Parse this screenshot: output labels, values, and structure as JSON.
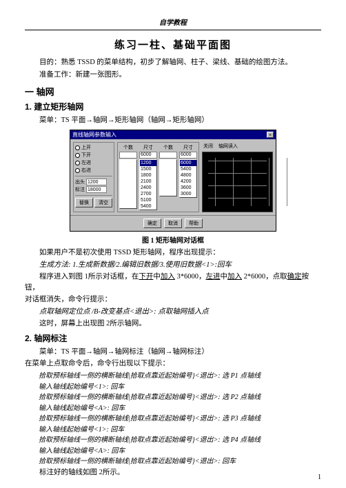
{
  "header": "自学教程",
  "title": "练习一柱、基础平面图",
  "intro1": "目的：熟悉 TSSD 的菜单结构，初步了解轴网、柱子、梁线、基础的绘图方法。",
  "intro2": "准备工作：新建一张图形。",
  "sec1": "一  轴网",
  "sec1_1": "1. 建立矩形轴网",
  "menu1": "菜单：TS 平面→轴网→矩形轴网（轴网→矩形轴网）",
  "dialog": {
    "title": "直线轴网参数输入",
    "radios": [
      "上开",
      "下开",
      "左进",
      "右进"
    ],
    "bottom_labels": [
      "出头",
      "标注"
    ],
    "bottom_vals": [
      "1200",
      "18000"
    ],
    "small_btns": [
      "替换",
      "清空"
    ],
    "col_headers": [
      "个数",
      "尺寸",
      "个数",
      "尺寸"
    ],
    "num_top": [
      "",
      "6000",
      "",
      "6000"
    ],
    "list1": [
      "1200",
      "1500",
      "1800",
      "2100",
      "2400",
      "2700",
      "5100",
      "5400"
    ],
    "list2": [
      "6000",
      "5400",
      "4800",
      "4200",
      "3600",
      "3000"
    ],
    "right_labels": [
      "关闭",
      "轴网读入"
    ],
    "grid_v": [
      18,
      44,
      70,
      96,
      122
    ],
    "grid_h": [
      12,
      30,
      48,
      66
    ],
    "bottom_btns": [
      "确定",
      "取消",
      "帮助"
    ]
  },
  "fig1": "图 1  矩形轴网对话框",
  "p1": "如果用户不是初次使用 TSSD 矩形轴网，程序出现提示：",
  "p1a": "生成方法: 1.生成新数据/2.编辑旧数据/3.使用旧数据<1>:回车",
  "p2a": "程序进入到图 1所示对话框，在",
  "p2b": "下开",
  "p2c": "中",
  "p2d": "加入",
  "p2e": " 3*6000，",
  "p2f": "左进",
  "p2g": "中",
  "p2h": "加入",
  "p2i": " 2*6000，点取",
  "p2j": "确定",
  "p2k": "按钮，",
  "p3": "对话框消失，命令行提示：",
  "p3a": "点取轴网定位点 /B-改变基点<退出>:           点取轴网插入点",
  "p4": "这时，屏幕上出现图 2所示轴网。",
  "sec1_2": "2. 轴网标注",
  "menu2": "菜单：TS 平面→轴网→轴网标注（轴网→轴网标注）",
  "p5": "在菜单上点取命令后，命令行出现以下提示：",
  "lines": [
    "拾取预标轴线一侧的横断轴线|拾取点靠近起始编号}<退出>:  选 P1 点轴线",
    "输入轴线起始编号<1>:  回车",
    "拾取预标轴线一侧的横断轴线|拾取点靠近起始编号}<退出>:  选 P2 点轴线",
    "输入轴线起始编号<A>:  回车",
    "拾取预标轴线一侧的横断轴线|拾取点靠近起始编号}<退出>:  选 P3 点轴线",
    "输入轴线起始编号<1>:  回车",
    "拾取预标轴线一侧的横断轴线|拾取点靠近起始编号}<退出>:  选 P4 点轴线",
    "输入轴线起始编号<A>:  回车",
    "拾取预标轴线一侧的横断轴线|拾取点靠近起始编号}<退出>:  回车"
  ],
  "p6": "标注好的轴线如图 2所示。",
  "pagenum": "1"
}
